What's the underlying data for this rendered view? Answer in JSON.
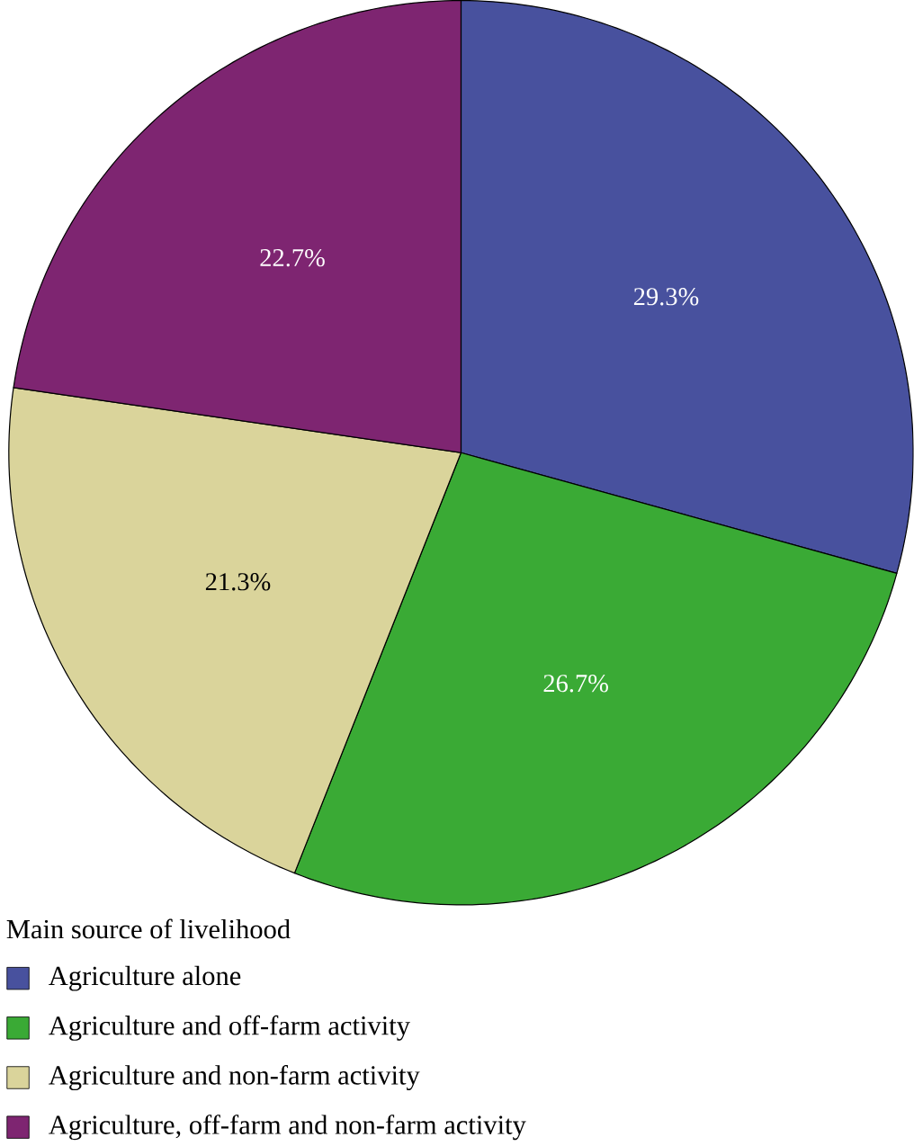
{
  "chart_data": {
    "type": "pie",
    "legend_title": "Main source of livelihood",
    "categories": [
      "Agriculture alone",
      "Agriculture and off-farm activity",
      "Agriculture and non-farm activity",
      "Agriculture, off-farm and non-farm activity"
    ],
    "values": [
      29.3,
      26.7,
      21.3,
      22.7
    ],
    "value_labels": [
      "29.3%",
      "26.7%",
      "21.3%",
      "22.7%"
    ],
    "colors": [
      "#48519e",
      "#3aaa35",
      "#dad49b",
      "#7e2571"
    ],
    "legend": "bottom"
  }
}
